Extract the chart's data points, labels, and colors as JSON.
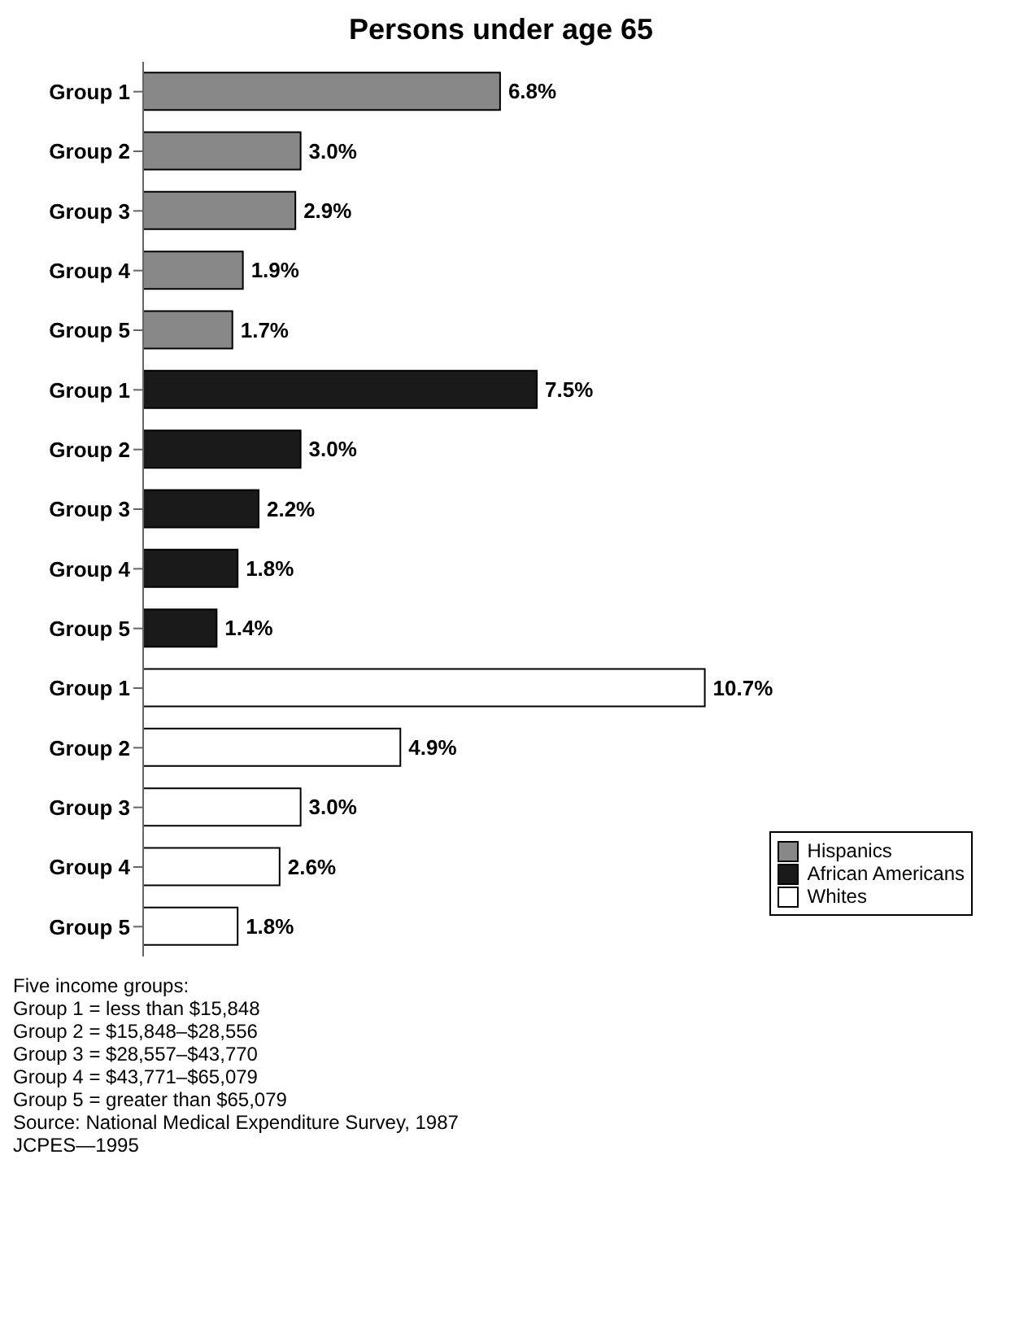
{
  "chart_data": {
    "type": "bar",
    "orientation": "horizontal",
    "stacked": true,
    "title": "Persons under age 65",
    "categories": [
      "Group 1",
      "Group 2",
      "Group 3",
      "Group 4",
      "Group 5",
      "Group 1",
      "Group 2",
      "Group 3",
      "Group 4",
      "Group 5",
      "Group 1",
      "Group 2",
      "Group 3",
      "Group 4",
      "Group 5"
    ],
    "series": [
      {
        "name": "Hispanics",
        "color": "#888888",
        "values": [
          6.8,
          3.0,
          2.9,
          1.9,
          1.7,
          null,
          null,
          null,
          null,
          null,
          null,
          null,
          null,
          null,
          null
        ],
        "value_labels": [
          "6.8%",
          "3.0%",
          "2.9%",
          "1.9%",
          "1.7%",
          null,
          null,
          null,
          null,
          null,
          null,
          null,
          null,
          null,
          null
        ]
      },
      {
        "name": "African Americans",
        "color": "#1a1a1a",
        "values": [
          null,
          null,
          null,
          null,
          null,
          7.5,
          3.0,
          2.2,
          1.8,
          1.4,
          null,
          null,
          null,
          null,
          null
        ],
        "value_labels": [
          null,
          null,
          null,
          null,
          null,
          "7.5%",
          "3.0%",
          "2.2%",
          "1.8%",
          "1.4%",
          null,
          null,
          null,
          null,
          null
        ]
      },
      {
        "name": "Whites",
        "color": "#ffffff",
        "values": [
          null,
          null,
          null,
          null,
          null,
          null,
          null,
          null,
          null,
          null,
          10.7,
          4.9,
          3.0,
          2.6,
          1.8
        ],
        "value_labels": [
          null,
          null,
          null,
          null,
          null,
          null,
          null,
          null,
          null,
          null,
          "10.7%",
          "4.9%",
          "3.0%",
          "2.6%",
          "1.8%"
        ]
      }
    ],
    "legend": "bottom right",
    "annotations": [
      "Five income groups:",
      "Group 1 = less than $15,848",
      "Group 2 = $15,848–$28,556",
      "Group 3 = $28,557–$43,770",
      "Group 4 = $43,771–$65,079",
      "Group 5 = greater than $65,079",
      "Source: National Medical Expenditure Survey, 1987",
      "JCPES—1995"
    ]
  }
}
